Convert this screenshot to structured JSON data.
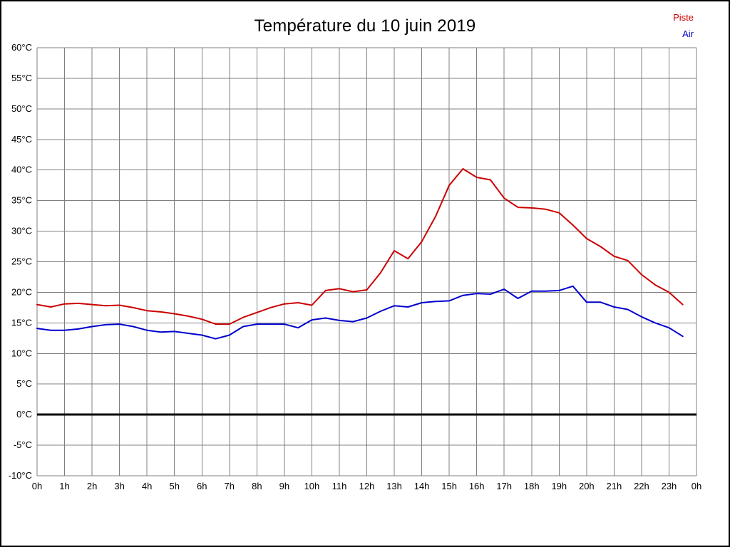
{
  "title": "Température du 10 juin 2019",
  "chart_data": {
    "type": "line",
    "title": "Température du 10 juin 2019",
    "xlabel": "",
    "ylabel": "",
    "xlim": [
      0,
      24
    ],
    "ylim": [
      -10,
      60
    ],
    "y_tick_step": 5,
    "x_tick_labels": [
      "0h",
      "1h",
      "2h",
      "3h",
      "4h",
      "5h",
      "6h",
      "7h",
      "8h",
      "9h",
      "10h",
      "11h",
      "12h",
      "13h",
      "14h",
      "15h",
      "16h",
      "17h",
      "18h",
      "19h",
      "20h",
      "21h",
      "22h",
      "23h",
      "0h"
    ],
    "y_tick_labels": [
      "60°C",
      "55°C",
      "50°C",
      "45°C",
      "40°C",
      "35°C",
      "30°C",
      "25°C",
      "20°C",
      "15°C",
      "10°C",
      "5°C",
      "0°C",
      "-5°C",
      "-10°C"
    ],
    "grid": true,
    "grid_color": "#808080",
    "zero_line_value": 0,
    "zero_line_color": "#000000",
    "legend_position": "top-right",
    "x_unit": "hours",
    "x_start": 0,
    "x_step": 0.5,
    "series": [
      {
        "name": "Piste",
        "color": "#cc0000",
        "values": [
          18.0,
          17.6,
          18.1,
          18.2,
          18.0,
          17.8,
          17.9,
          17.5,
          17.0,
          16.8,
          16.5,
          16.1,
          15.6,
          14.8,
          14.8,
          15.9,
          16.7,
          17.5,
          18.1,
          18.3,
          17.9,
          20.3,
          20.6,
          20.1,
          20.4,
          23.2,
          26.8,
          25.5,
          28.3,
          32.4,
          37.5,
          40.2,
          38.8,
          38.4,
          35.4,
          33.9,
          33.8,
          33.6,
          33.0,
          31.0,
          28.8,
          27.5,
          25.9,
          25.2,
          22.9,
          21.2,
          20.0,
          18.0
        ]
      },
      {
        "name": "Air",
        "color": "#0000cc",
        "values": [
          14.1,
          13.8,
          13.8,
          14.0,
          14.4,
          14.7,
          14.8,
          14.4,
          13.8,
          13.5,
          13.6,
          13.3,
          13.0,
          12.4,
          13.0,
          14.4,
          14.8,
          14.8,
          14.8,
          14.2,
          15.5,
          15.8,
          15.4,
          15.2,
          15.8,
          16.9,
          17.8,
          17.6,
          18.3,
          18.5,
          18.6,
          19.5,
          19.8,
          19.7,
          20.5,
          19.0,
          20.2,
          20.2,
          20.3,
          21.0,
          18.4,
          18.4,
          17.6,
          17.2,
          16.0,
          15.0,
          14.2,
          12.8
        ]
      }
    ]
  }
}
